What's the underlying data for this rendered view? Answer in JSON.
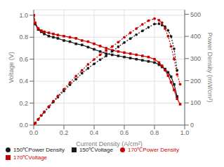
{
  "chart_data": {
    "type": "line",
    "xlabel": "Current Density (A/cm²)",
    "ylabel": "Voltage (V)",
    "y2label": "Power Density (mW/cm²)",
    "xlim": [
      0.0,
      1.0
    ],
    "ylim": [
      0.0,
      1.05
    ],
    "y2lim": [
      0,
      520
    ],
    "xticks": [
      {
        "value": 0.0,
        "label": "0.0"
      },
      0.2,
      0.4,
      0.6,
      0.8,
      {
        "value": 1.0,
        "label": "1.0"
      }
    ],
    "yticks": [
      {
        "value": 0.0,
        "label": "0.0"
      },
      0.2,
      0.4,
      0.6,
      0.8,
      {
        "value": 1.0,
        "label": "1.0"
      }
    ],
    "y2ticks": [
      0,
      100,
      200,
      300,
      400,
      500
    ],
    "grid": true,
    "legend": "lower left",
    "series": [
      {
        "name": "150℃Voltage",
        "color": "#1a1a1a",
        "marker": "square",
        "line_style": "solid",
        "axis": "y",
        "x": [
          0.0,
          0.01,
          0.03,
          0.05,
          0.07,
          0.1,
          0.13,
          0.16,
          0.2,
          0.24,
          0.28,
          0.32,
          0.36,
          0.4,
          0.44,
          0.48,
          0.52,
          0.56,
          0.6,
          0.64,
          0.68,
          0.72,
          0.76,
          0.8,
          0.83,
          0.85,
          0.87,
          0.89,
          0.91,
          0.93,
          0.95
        ],
        "values": [
          1.0,
          0.92,
          0.87,
          0.85,
          0.83,
          0.81,
          0.8,
          0.79,
          0.77,
          0.76,
          0.74,
          0.73,
          0.71,
          0.69,
          0.67,
          0.65,
          0.64,
          0.63,
          0.62,
          0.61,
          0.6,
          0.59,
          0.58,
          0.57,
          0.55,
          0.53,
          0.51,
          0.48,
          0.44,
          0.37,
          0.26
        ]
      },
      {
        "name": "170℃Voltage",
        "color": "#cc0000",
        "marker": "square",
        "line_style": "solid",
        "axis": "y",
        "x": [
          0.0,
          0.01,
          0.03,
          0.05,
          0.07,
          0.1,
          0.13,
          0.16,
          0.2,
          0.24,
          0.28,
          0.32,
          0.36,
          0.4,
          0.44,
          0.48,
          0.52,
          0.56,
          0.6,
          0.64,
          0.68,
          0.72,
          0.76,
          0.8,
          0.83,
          0.85,
          0.87,
          0.89,
          0.91,
          0.93,
          0.95,
          0.97
        ],
        "values": [
          1.0,
          0.93,
          0.88,
          0.86,
          0.85,
          0.84,
          0.83,
          0.82,
          0.81,
          0.8,
          0.79,
          0.77,
          0.76,
          0.74,
          0.72,
          0.7,
          0.68,
          0.67,
          0.66,
          0.65,
          0.64,
          0.63,
          0.62,
          0.6,
          0.57,
          0.54,
          0.5,
          0.45,
          0.39,
          0.32,
          0.24,
          0.19
        ]
      },
      {
        "name": "150℃Power Density",
        "color": "#1a1a1a",
        "marker": "circle",
        "line_style": "dotted",
        "axis": "y2",
        "x": [
          0.0,
          0.01,
          0.03,
          0.05,
          0.07,
          0.1,
          0.13,
          0.16,
          0.2,
          0.24,
          0.28,
          0.32,
          0.36,
          0.4,
          0.44,
          0.48,
          0.52,
          0.56,
          0.6,
          0.64,
          0.68,
          0.72,
          0.76,
          0.8,
          0.83,
          0.85,
          0.87,
          0.89,
          0.91,
          0.93,
          0.95
        ],
        "values": [
          0,
          9,
          26,
          43,
          58,
          81,
          104,
          126,
          154,
          182,
          207,
          234,
          256,
          276,
          295,
          312,
          333,
          353,
          372,
          390,
          408,
          425,
          441,
          456,
          457,
          451,
          444,
          427,
          400,
          344,
          247
        ]
      },
      {
        "name": "170℃Power Density",
        "color": "#cc0000",
        "marker": "circle",
        "line_style": "dotted",
        "axis": "y2",
        "x": [
          0.0,
          0.01,
          0.03,
          0.05,
          0.07,
          0.1,
          0.13,
          0.16,
          0.2,
          0.24,
          0.28,
          0.32,
          0.36,
          0.4,
          0.44,
          0.48,
          0.52,
          0.56,
          0.6,
          0.64,
          0.68,
          0.72,
          0.76,
          0.8,
          0.83,
          0.85,
          0.87,
          0.89,
          0.91,
          0.93,
          0.95,
          0.97
        ],
        "values": [
          0,
          9,
          26,
          43,
          60,
          84,
          108,
          131,
          162,
          192,
          221,
          247,
          274,
          296,
          317,
          336,
          354,
          374,
          396,
          416,
          435,
          454,
          471,
          480,
          473,
          462,
          435,
          401,
          355,
          298,
          228,
          184
        ]
      }
    ]
  }
}
